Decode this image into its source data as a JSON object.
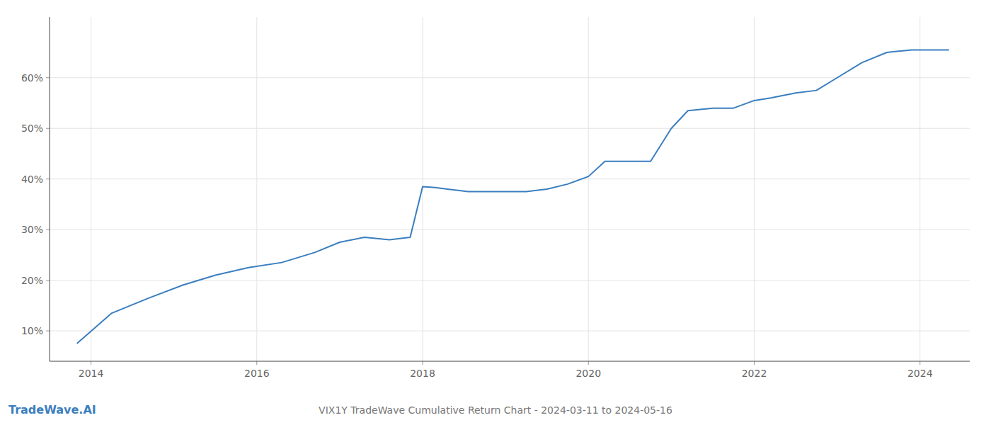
{
  "chart_data": {
    "type": "line",
    "title": "VIX1Y TradeWave Cumulative Return Chart - 2024-03-11 to 2024-05-16",
    "annotations": [
      "TradeWave.AI"
    ],
    "color": "#3a7ebf",
    "x": [
      2013.83,
      2014.25,
      2014.7,
      2015.1,
      2015.5,
      2015.9,
      2016.3,
      2016.7,
      2017.0,
      2017.3,
      2017.6,
      2017.85,
      2018.0,
      2018.15,
      2018.3,
      2018.55,
      2018.75,
      2019.0,
      2019.25,
      2019.5,
      2019.75,
      2020.0,
      2020.2,
      2020.55,
      2020.75,
      2021.0,
      2021.2,
      2021.5,
      2021.75,
      2022.0,
      2022.2,
      2022.5,
      2022.75,
      2023.0,
      2023.3,
      2023.6,
      2023.9,
      2024.1,
      2024.35
    ],
    "values": [
      7.5,
      13.5,
      16.5,
      19.0,
      21.0,
      22.5,
      23.5,
      25.5,
      27.5,
      28.5,
      28.0,
      28.5,
      38.5,
      38.3,
      38.0,
      37.5,
      37.5,
      37.5,
      37.5,
      38.0,
      39.0,
      40.5,
      43.5,
      43.5,
      43.5,
      50.0,
      53.5,
      54.0,
      54.0,
      55.5,
      56.0,
      57.0,
      57.5,
      60.0,
      63.0,
      65.0,
      65.5,
      65.5,
      65.5
    ],
    "xlim": [
      2013.5,
      2024.6
    ],
    "ylim": [
      4,
      72
    ],
    "xticks": [
      2014,
      2016,
      2018,
      2020,
      2022,
      2024
    ],
    "yticks": [
      {
        "value": 10,
        "label": "10%"
      },
      {
        "value": 20,
        "label": "20%"
      },
      {
        "value": 30,
        "label": "30%"
      },
      {
        "value": 40,
        "label": "40%"
      },
      {
        "value": 50,
        "label": "50%"
      },
      {
        "value": 60,
        "label": "60%"
      }
    ],
    "grid": true
  }
}
